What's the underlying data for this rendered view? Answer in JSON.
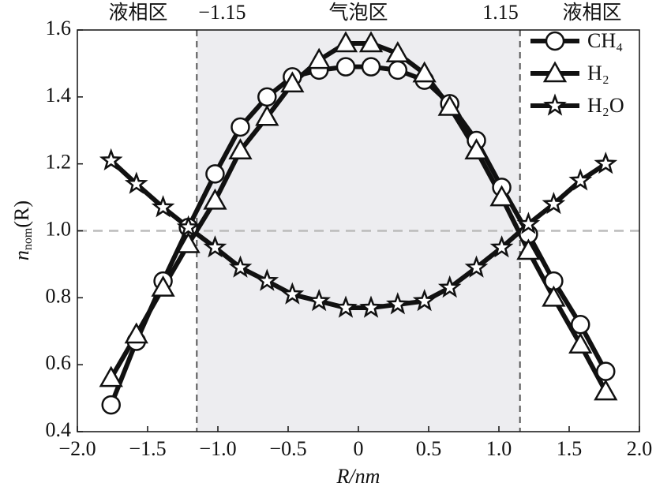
{
  "chart_data": {
    "type": "line",
    "xlabel": "R/nm",
    "ylabel": {
      "main": "n",
      "sub": "nom",
      "tail": "(R)"
    },
    "x": [
      -1.76,
      -1.58,
      -1.39,
      -1.21,
      -1.02,
      -0.84,
      -0.65,
      -0.47,
      -0.28,
      -0.09,
      0.09,
      0.28,
      0.47,
      0.65,
      0.84,
      1.02,
      1.21,
      1.39,
      1.58,
      1.76
    ],
    "series": [
      {
        "name": "CH₄",
        "marker": "circle",
        "color": "#111111",
        "values": [
          0.48,
          0.67,
          0.85,
          1.01,
          1.17,
          1.31,
          1.4,
          1.46,
          1.48,
          1.49,
          1.49,
          1.48,
          1.45,
          1.38,
          1.27,
          1.13,
          0.99,
          0.85,
          0.72,
          0.58
        ]
      },
      {
        "name": "H₂",
        "marker": "triangle",
        "color": "#111111",
        "values": [
          0.56,
          0.69,
          0.83,
          0.96,
          1.09,
          1.24,
          1.34,
          1.44,
          1.51,
          1.56,
          1.56,
          1.53,
          1.47,
          1.37,
          1.24,
          1.1,
          0.94,
          0.8,
          0.66,
          0.52
        ]
      },
      {
        "name": "H₂O",
        "marker": "star",
        "color": "#111111",
        "values": [
          1.21,
          1.14,
          1.07,
          1.01,
          0.95,
          0.89,
          0.85,
          0.81,
          0.79,
          0.77,
          0.77,
          0.78,
          0.79,
          0.83,
          0.89,
          0.95,
          1.02,
          1.08,
          1.15,
          1.2
        ]
      }
    ],
    "xlim": [
      -2,
      2
    ],
    "xticks": [
      {
        "value": -2,
        "label": "−2.0"
      },
      {
        "value": -1.5,
        "label": "−1.5"
      },
      {
        "value": -1,
        "label": "−1.0"
      },
      {
        "value": -0.5,
        "label": "−0.5"
      },
      0,
      0.5,
      {
        "value": 1,
        "label": "1.0"
      },
      1.5,
      {
        "value": 2,
        "label": "2.0"
      }
    ],
    "ylim": [
      0.4,
      1.6
    ],
    "yticks": [
      0.4,
      0.6,
      0.8,
      {
        "value": 1,
        "label": "1.0"
      },
      1.2,
      1.4,
      1.6
    ],
    "vlines": [
      {
        "value": -1.15,
        "label": "−1.15"
      },
      {
        "value": 1.15,
        "label": "1.15"
      }
    ],
    "hline": 1,
    "regions": [
      {
        "label": "液相区"
      },
      {
        "label": "气泡区"
      },
      {
        "label": "液相区"
      }
    ],
    "shade_color": "#ededf0",
    "legend": "upper right"
  }
}
